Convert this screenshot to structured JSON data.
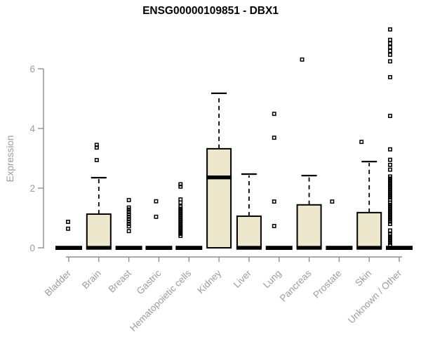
{
  "header": {
    "title": "ENSG00000109851 - DBX1"
  },
  "colors": {
    "box_fill": "#EDE7CB",
    "box_border": "#000000",
    "median": "#000000",
    "whisker": "#000000",
    "outlier": "#000000",
    "axis_line": "#8f8f8f",
    "axis_text": "#9c9c9c",
    "title_text": "#000000"
  },
  "chart_data": {
    "type": "boxplot",
    "title": "ENSG00000109851 - DBX1",
    "xlabel": "",
    "ylabel": "Expression",
    "yticks": [
      0,
      2,
      4,
      6
    ],
    "ylim": [
      -0.3,
      7.5
    ],
    "grid": "off",
    "legend": "none",
    "categories": [
      "Bladder",
      "Brain",
      "Breast",
      "Gastric",
      "Hematopoietic cells",
      "Kidney",
      "Liver",
      "Lung",
      "Pancreas",
      "Prostate",
      "Skin",
      "Unknown / Other"
    ],
    "series": [
      {
        "name": "Bladder",
        "q1": 0,
        "median": 0,
        "q3": 0,
        "whisker_low": 0,
        "whisker_high": 0,
        "outliers": [
          0.64,
          0.87
        ],
        "outlier_dx": -1
      },
      {
        "name": "Brain",
        "q1": 0,
        "median": 0,
        "q3": 1.13,
        "whisker_low": 0,
        "whisker_high": 2.35,
        "outliers": [
          2.94,
          3.36,
          3.45
        ],
        "outlier_dx": -3
      },
      {
        "name": "Breast",
        "q1": 0,
        "median": 0,
        "q3": 0,
        "whisker_low": 0,
        "whisker_high": 0,
        "outliers": [
          0.56,
          0.72,
          0.8,
          0.88,
          0.96,
          1.04,
          1.12,
          1.2,
          1.28,
          1.35,
          1.6
        ],
        "outlier_dx": 0
      },
      {
        "name": "Gastric",
        "q1": 0,
        "median": 0,
        "q3": 0,
        "whisker_low": 0,
        "whisker_high": 0,
        "outliers": [
          1.04,
          1.56
        ],
        "outlier_dx": -4
      },
      {
        "name": "Hematopoietic cells",
        "q1": 0,
        "median": 0,
        "q3": 0,
        "whisker_low": 0,
        "whisker_high": 0,
        "outliers": [
          0.4,
          0.47,
          0.54,
          0.61,
          0.68,
          0.75,
          0.82,
          0.89,
          0.96,
          1.03,
          1.1,
          1.17,
          1.24,
          1.31,
          1.38,
          1.52,
          1.62,
          2.05,
          2.13
        ],
        "outlier_dx": -12
      },
      {
        "name": "Kidney",
        "q1": 0,
        "median": 2.36,
        "q3": 3.32,
        "whisker_low": 0,
        "whisker_high": 5.18,
        "outliers": [],
        "outlier_dx": 0
      },
      {
        "name": "Liver",
        "q1": 0,
        "median": 0,
        "q3": 1.06,
        "whisker_low": 0,
        "whisker_high": 2.47,
        "outliers": [],
        "outlier_dx": 0
      },
      {
        "name": "Lung",
        "q1": 0,
        "median": 0,
        "q3": 0,
        "whisker_low": 0,
        "whisker_high": 0,
        "outliers": [
          0.73,
          1.55,
          3.69,
          4.49
        ],
        "outlier_dx": -7
      },
      {
        "name": "Pancreas",
        "q1": 0,
        "median": 0,
        "q3": 1.44,
        "whisker_low": 0,
        "whisker_high": 2.42,
        "outliers": [
          6.31
        ],
        "outlier_dx": -10
      },
      {
        "name": "Prostate",
        "q1": 0,
        "median": 0,
        "q3": 0,
        "whisker_low": 0,
        "whisker_high": 0,
        "outliers": [
          1.55
        ],
        "outlier_dx": -10
      },
      {
        "name": "Skin",
        "q1": 0,
        "median": 0,
        "q3": 1.18,
        "whisker_low": 0,
        "whisker_high": 2.89,
        "outliers": [
          3.55
        ],
        "outlier_dx": -11
      },
      {
        "name": "Unknown / Other",
        "q1": 0,
        "median": 0,
        "q3": 0,
        "whisker_low": 0,
        "whisker_high": 0,
        "outliers": [
          0.1,
          0.17,
          0.24,
          0.31,
          0.38,
          0.45,
          0.58,
          0.8,
          0.88,
          0.95,
          1.02,
          1.09,
          1.16,
          1.23,
          1.3,
          1.37,
          1.44,
          1.51,
          1.62,
          1.69,
          1.76,
          1.83,
          1.9,
          1.97,
          2.04,
          2.11,
          2.18,
          2.25,
          2.32,
          2.39,
          2.62,
          2.78,
          2.95,
          3.3,
          4.42,
          5.72,
          6.25,
          6.47,
          6.6,
          6.72,
          6.85,
          6.97,
          7.32
        ],
        "outlier_dx": -13
      }
    ]
  }
}
